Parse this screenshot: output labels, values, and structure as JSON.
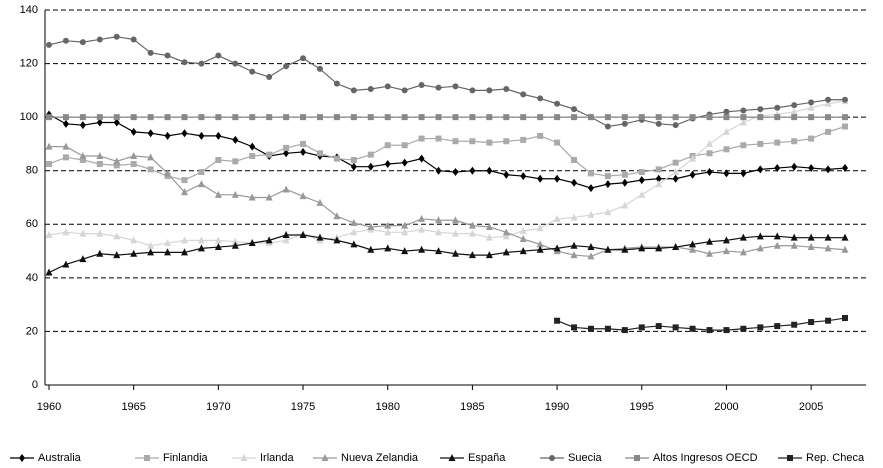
{
  "chart_data": {
    "type": "line",
    "x": [
      1960,
      1961,
      1962,
      1963,
      1964,
      1965,
      1966,
      1967,
      1968,
      1969,
      1970,
      1971,
      1972,
      1973,
      1974,
      1975,
      1976,
      1977,
      1978,
      1979,
      1980,
      1981,
      1982,
      1983,
      1984,
      1985,
      1986,
      1987,
      1988,
      1989,
      1990,
      1991,
      1992,
      1993,
      1994,
      1995,
      1996,
      1997,
      1998,
      1999,
      2000,
      2001,
      2002,
      2003,
      2004,
      2005,
      2006,
      2007
    ],
    "xlim": [
      1960,
      2007
    ],
    "xticks": [
      1960,
      1965,
      1970,
      1975,
      1980,
      1985,
      1990,
      1995,
      2000,
      2005
    ],
    "ylim": [
      0,
      140
    ],
    "yticks": [
      0,
      20,
      40,
      60,
      80,
      100,
      120,
      140
    ],
    "grid": true,
    "legend": "bottom",
    "series": [
      {
        "name": "Australia",
        "color": "#000000",
        "marker": "diamond",
        "values": [
          101,
          97.5,
          97,
          98,
          98,
          94.5,
          94,
          93,
          94,
          93,
          93,
          91.5,
          89,
          85.5,
          86.5,
          87,
          85.5,
          85,
          81.5,
          81.5,
          82.5,
          83,
          84.5,
          80,
          79.5,
          80,
          80,
          78.5,
          78,
          77,
          77,
          75.5,
          73.5,
          75,
          75.5,
          76.5,
          77,
          77,
          78.5,
          79.5,
          79,
          79,
          80.5,
          81,
          81.5,
          81,
          80.5,
          81
        ]
      },
      {
        "name": "Finlandia",
        "color": "#aaaaaa",
        "marker": "square",
        "values": [
          82.5,
          85,
          84,
          82.5,
          82,
          82.5,
          80.5,
          78,
          76.5,
          79.5,
          84,
          83.5,
          85.5,
          86,
          88.5,
          90,
          86.5,
          84.5,
          84,
          86,
          89.5,
          89.5,
          92,
          92,
          91,
          91,
          90.5,
          91,
          91.5,
          93,
          90.5,
          84,
          79,
          78,
          78.5,
          79.5,
          80.5,
          83,
          85.5,
          86.5,
          88,
          89.5,
          90,
          90.5,
          91,
          92,
          94.5,
          96.5
        ]
      },
      {
        "name": "Irlanda",
        "color": "#d6d6d6",
        "marker": "triangle",
        "values": [
          56,
          57,
          56.5,
          56.5,
          55.5,
          54,
          52,
          53,
          54,
          54,
          54,
          53.5,
          53,
          53,
          54,
          56.5,
          54,
          55,
          57,
          58,
          57,
          57,
          58,
          57,
          56.5,
          56.5,
          55,
          55.5,
          57.5,
          58.5,
          62,
          62.5,
          63.5,
          64.5,
          67,
          71,
          75,
          79.5,
          84.5,
          90,
          94.5,
          98,
          100.5,
          101,
          102,
          103.5,
          105,
          106
        ]
      },
      {
        "name": "Nueva Zelandia",
        "color": "#999999",
        "marker": "triangle",
        "values": [
          89,
          89,
          85.5,
          85.5,
          83.5,
          85.5,
          85,
          79,
          72,
          75,
          71,
          71,
          70,
          70,
          73,
          70.5,
          68,
          63,
          60.5,
          59,
          59.5,
          59.5,
          62,
          61.5,
          61.5,
          59.5,
          59,
          57,
          54.5,
          52.5,
          50,
          48.5,
          48,
          50.5,
          51,
          51.5,
          51.5,
          51.5,
          50.5,
          49,
          50,
          49.5,
          51,
          52,
          52,
          51.5,
          51,
          50.5
        ]
      },
      {
        "name": "España",
        "color": "#111111",
        "marker": "triangle",
        "values": [
          42,
          45,
          47,
          49,
          48.5,
          49,
          49.5,
          49.5,
          49.5,
          51,
          51.5,
          52,
          53,
          54,
          56,
          56,
          55,
          54,
          52.5,
          50.5,
          51,
          50,
          50.5,
          50,
          49,
          48.5,
          48.5,
          49.5,
          50,
          50.5,
          51,
          52,
          51.5,
          50.5,
          50.5,
          51,
          51,
          51.5,
          52.5,
          53.5,
          54,
          55,
          55.5,
          55.5,
          55,
          55,
          55,
          55
        ]
      },
      {
        "name": "Suecia",
        "color": "#666666",
        "marker": "circle",
        "values": [
          127,
          128.5,
          128,
          129,
          130,
          129,
          124,
          123,
          120.5,
          120,
          123,
          120,
          117,
          115,
          119,
          122,
          118,
          112.5,
          110,
          110.5,
          111.5,
          110,
          112,
          111,
          111.5,
          110,
          110,
          110.5,
          108.5,
          107,
          105,
          103,
          100,
          96.5,
          97.5,
          99,
          97.5,
          97,
          99.5,
          101,
          102,
          102.5,
          103,
          103.5,
          104.5,
          105.5,
          106.5,
          106.5
        ]
      },
      {
        "name": "Altos Ingresos OECD",
        "color": "#888888",
        "marker": "square",
        "values": [
          100,
          100,
          100,
          100,
          100,
          100,
          100,
          100,
          100,
          100,
          100,
          100,
          100,
          100,
          100,
          100,
          100,
          100,
          100,
          100,
          100,
          100,
          100,
          100,
          100,
          100,
          100,
          100,
          100,
          100,
          100,
          100,
          100,
          100,
          100,
          100,
          100,
          100,
          100,
          100,
          100,
          100,
          100,
          100,
          100,
          100,
          100,
          100
        ]
      },
      {
        "name": "Rep. Checa",
        "color": "#222222",
        "marker": "square",
        "values": [
          null,
          null,
          null,
          null,
          null,
          null,
          null,
          null,
          null,
          null,
          null,
          null,
          null,
          null,
          null,
          null,
          null,
          null,
          null,
          null,
          null,
          null,
          null,
          null,
          null,
          null,
          null,
          null,
          null,
          null,
          24,
          21.5,
          21,
          21,
          20.5,
          21.5,
          22,
          21.5,
          21,
          20.5,
          20.5,
          21,
          21.5,
          22,
          22.5,
          23.5,
          24,
          25
        ]
      }
    ]
  }
}
